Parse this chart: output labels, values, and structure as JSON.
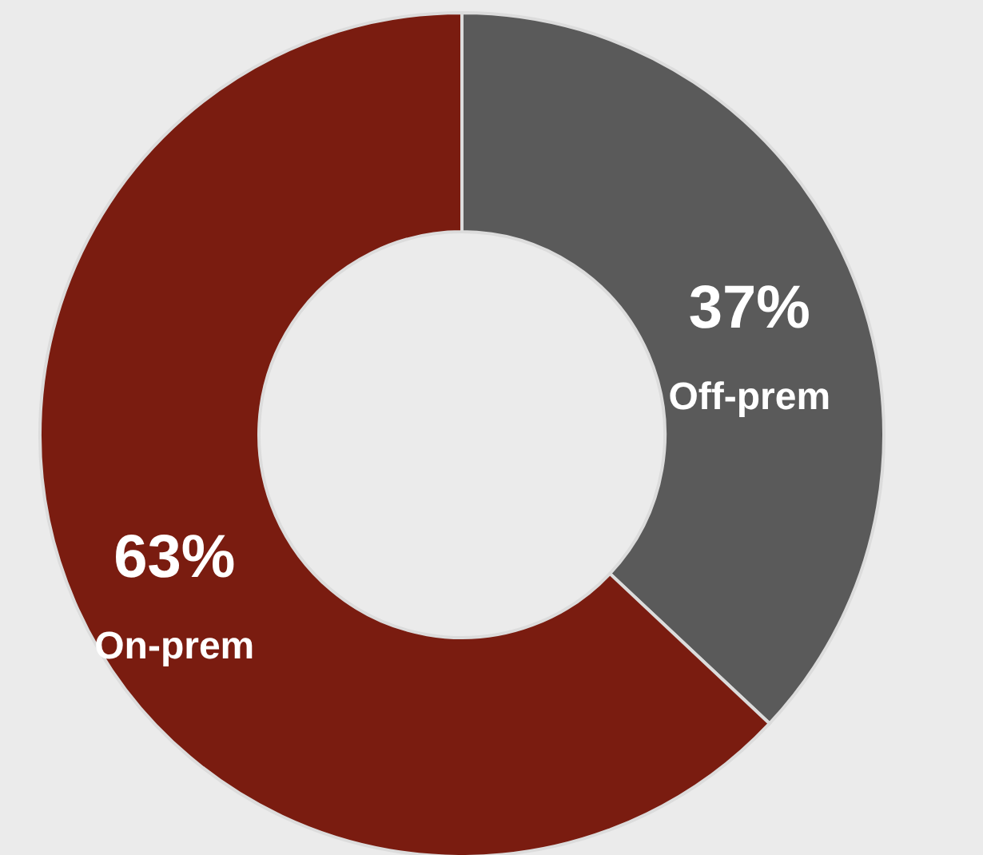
{
  "chart_data": {
    "type": "donut",
    "categories": [
      "Off-prem",
      "On-prem"
    ],
    "values": [
      37,
      63
    ],
    "colors": [
      "#5a5a5a",
      "#7a1c10"
    ],
    "value_labels": [
      "37%",
      "63%"
    ]
  }
}
